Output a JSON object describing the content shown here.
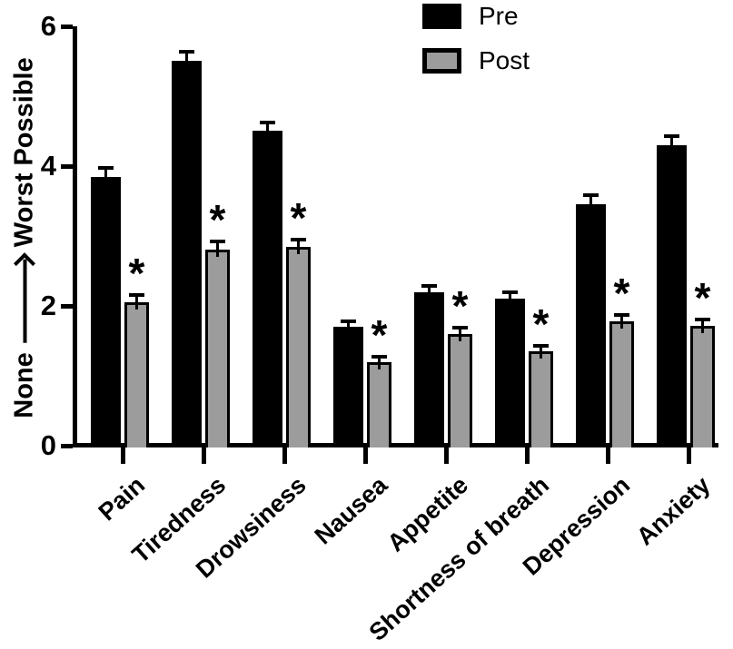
{
  "chart_data": {
    "type": "bar",
    "categories": [
      "Pain",
      "Tiredness",
      "Drowsiness",
      "Nausea",
      "Appetite",
      "Shortness of breath",
      "Depression",
      "Anxiety"
    ],
    "series": [
      {
        "name": "Pre",
        "color": "#000000",
        "values": [
          3.85,
          5.5,
          4.5,
          1.7,
          2.2,
          2.1,
          3.45,
          4.3
        ],
        "errors": [
          0.1,
          0.11,
          0.09,
          0.05,
          0.07,
          0.07,
          0.1,
          0.1
        ],
        "significant": [
          false,
          false,
          false,
          false,
          false,
          false,
          false,
          false
        ]
      },
      {
        "name": "Post",
        "color": "#9c9c9c",
        "values": [
          2.05,
          2.8,
          2.85,
          1.2,
          1.6,
          1.35,
          1.78,
          1.72
        ],
        "errors": [
          0.08,
          0.09,
          0.08,
          0.05,
          0.06,
          0.05,
          0.06,
          0.06
        ],
        "significant": [
          true,
          true,
          true,
          true,
          true,
          true,
          true,
          true
        ]
      }
    ],
    "ylim": [
      0,
      6
    ],
    "yticks": [
      "0",
      "2",
      "4",
      "6"
    ],
    "ylabel_min": "None",
    "ylabel_max": "Worst Possible",
    "sig_marker": "*",
    "error_bars": true,
    "grid": false,
    "legend_position": "top-center"
  }
}
